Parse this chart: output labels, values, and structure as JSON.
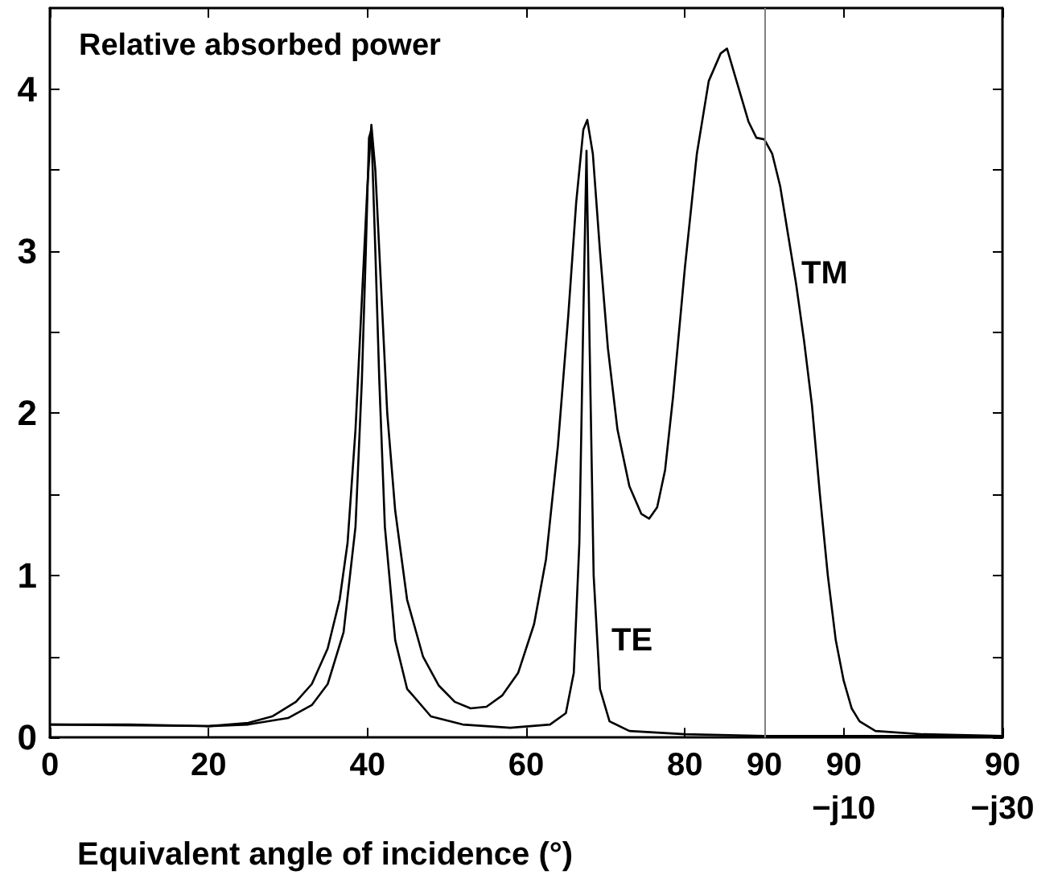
{
  "chart_data": {
    "type": "line",
    "title": "Relative absorbed power",
    "xlabel": "Equivalent angle of incidence (°)",
    "xlim": [
      0,
      120
    ],
    "xticks": [
      0,
      20,
      40,
      60,
      80,
      90,
      {
        "value": 100,
        "label": "90\n−j10"
      },
      {
        "value": 120,
        "label": "90\n−j30"
      }
    ],
    "ylim": [
      0,
      4.5
    ],
    "yticks": [
      0,
      {
        "value": 0.5,
        "label": null
      },
      1,
      {
        "value": 1.5,
        "label": null
      },
      2,
      {
        "value": 2.5,
        "label": null
      },
      3,
      {
        "value": 3.5,
        "label": null
      },
      4
    ],
    "grid": false,
    "marker": "none",
    "line_style": "solid",
    "ref_lines": [
      {
        "axis": "x",
        "value": 90,
        "color": "#808080"
      }
    ],
    "annotations": [
      "TE",
      "TM"
    ],
    "series": [
      {
        "color": "#000000",
        "x": [
          0,
          10,
          20,
          25,
          28,
          31,
          33,
          35,
          36.5,
          37.5,
          38.5,
          39.3,
          40,
          40.5,
          41,
          41.7,
          42.5,
          43.5,
          45,
          47,
          49,
          51,
          53,
          55,
          57,
          59,
          61,
          62.5,
          64,
          65.3,
          66.3,
          67.2,
          67.7,
          68.4,
          69.3,
          70.3,
          71.5,
          73,
          74.5,
          75.5,
          76.5,
          77.5,
          78.5,
          80,
          81.5,
          83,
          84.5,
          85.3,
          86.5,
          88,
          89,
          90,
          91,
          92,
          93,
          94,
          95,
          96,
          97,
          98,
          99,
          100,
          101,
          102,
          104,
          110,
          120
        ],
        "values": [
          0.08,
          0.08,
          0.07,
          0.09,
          0.13,
          0.22,
          0.33,
          0.55,
          0.85,
          1.2,
          1.9,
          2.7,
          3.4,
          3.78,
          3.5,
          2.8,
          2.0,
          1.4,
          0.85,
          0.5,
          0.32,
          0.22,
          0.18,
          0.19,
          0.26,
          0.4,
          0.7,
          1.1,
          1.8,
          2.6,
          3.3,
          3.75,
          3.81,
          3.6,
          3.0,
          2.4,
          1.9,
          1.55,
          1.38,
          1.35,
          1.42,
          1.65,
          2.1,
          2.9,
          3.6,
          4.05,
          4.22,
          4.25,
          4.05,
          3.8,
          3.7,
          3.69,
          3.6,
          3.4,
          3.1,
          2.8,
          2.45,
          2.05,
          1.5,
          1.0,
          0.6,
          0.35,
          0.18,
          0.1,
          0.04,
          0.02,
          0.01
        ]
      },
      {
        "color": "#000000",
        "x": [
          0,
          20,
          25,
          30,
          33,
          35,
          37,
          38.5,
          39.3,
          39.8,
          40.2,
          40.5,
          41,
          41.5,
          42.2,
          43.5,
          45,
          48,
          52,
          58,
          63,
          65,
          66,
          66.7,
          67.2,
          67.6,
          68,
          68.5,
          69.3,
          70.5,
          73,
          80,
          90,
          100,
          120
        ],
        "values": [
          0.08,
          0.07,
          0.08,
          0.12,
          0.2,
          0.33,
          0.65,
          1.3,
          2.2,
          3.0,
          3.7,
          3.75,
          3.0,
          2.2,
          1.3,
          0.6,
          0.3,
          0.13,
          0.08,
          0.06,
          0.08,
          0.15,
          0.4,
          1.2,
          2.6,
          3.62,
          2.4,
          1.0,
          0.3,
          0.1,
          0.04,
          0.02,
          0.01,
          0.01,
          0.01
        ]
      }
    ]
  }
}
